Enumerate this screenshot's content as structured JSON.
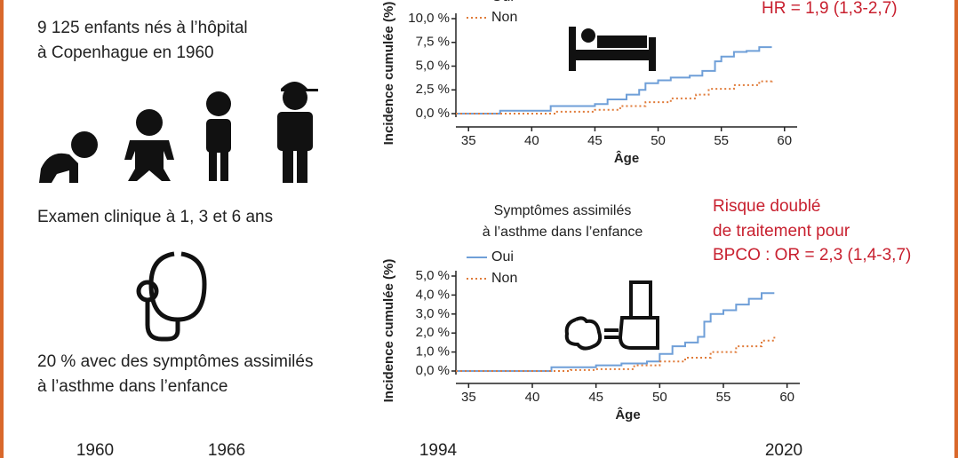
{
  "intro": [
    "9 125 enfants nés à l’hôpital",
    "à Copenhague en 1960"
  ],
  "exam": "Examen clinique à 1, 3 et 6 ans",
  "symptoms": [
    "20 % avec des symptômes assimilés",
    "à l’asthme dans l’enfance"
  ],
  "timeline": [
    "1960",
    "1966",
    "1994",
    "2020"
  ],
  "chart_data": [
    {
      "type": "line",
      "step": true,
      "ylabel": "Incidence cumulée (%)",
      "xlabel": "Âge",
      "annotation": [
        "HR = 1,9 (1,3-2,7)"
      ],
      "xlim": [
        34,
        61
      ],
      "xticks": [
        35,
        40,
        45,
        50,
        55,
        60
      ],
      "ylim": [
        0,
        10
      ],
      "yticks": [
        {
          "value": 0,
          "label": "0,0 %"
        },
        {
          "value": 2.5,
          "label": "2,5 %"
        },
        {
          "value": 5,
          "label": "5,0 %"
        },
        {
          "value": 7.5,
          "label": "7,5 %"
        },
        {
          "value": 10,
          "label": "10,0 %"
        }
      ],
      "series": [
        {
          "name": "Oui",
          "color": "#6f9fd8",
          "line_style": "solid",
          "x": [
            34,
            37.5,
            41.5,
            45,
            46,
            47.5,
            48.5,
            49,
            50,
            51,
            52.5,
            53.5,
            54.5,
            55,
            56,
            57,
            58,
            59
          ],
          "values": [
            0,
            0.3,
            0.8,
            1.0,
            1.5,
            2.0,
            2.5,
            3.2,
            3.5,
            3.8,
            4.0,
            4.5,
            5.5,
            6.0,
            6.5,
            6.6,
            7.0,
            7.0
          ]
        },
        {
          "name": "Non",
          "color": "#e07b39",
          "line_style": "dotted",
          "x": [
            34,
            42,
            45,
            47,
            49,
            51,
            53,
            54,
            56,
            58,
            59
          ],
          "values": [
            0,
            0.2,
            0.4,
            0.8,
            1.2,
            1.6,
            2.0,
            2.6,
            3.0,
            3.4,
            3.6
          ]
        }
      ]
    },
    {
      "type": "line",
      "step": true,
      "title": [
        "Symptômes assimilés",
        "à l’asthme dans l’enfance"
      ],
      "ylabel": "Incidence cumulée (%)",
      "xlabel": "Âge",
      "annotation": [
        "Risque doublé",
        "de traitement pour",
        "BPCO : OR = 2,3 (1,4-3,7)"
      ],
      "xlim": [
        34,
        61
      ],
      "xticks": [
        35,
        40,
        45,
        50,
        55,
        60
      ],
      "ylim": [
        0,
        5
      ],
      "yticks": [
        {
          "value": 0,
          "label": "0,0 %"
        },
        {
          "value": 1,
          "label": "1,0 %"
        },
        {
          "value": 2,
          "label": "2,0 %"
        },
        {
          "value": 3,
          "label": "3,0 %"
        },
        {
          "value": 4,
          "label": "4,0 %"
        },
        {
          "value": 5,
          "label": "5,0 %"
        }
      ],
      "series": [
        {
          "name": "Oui",
          "color": "#6f9fd8",
          "line_style": "solid",
          "x": [
            34,
            41.5,
            45,
            47,
            49,
            50,
            51,
            52,
            53,
            53.5,
            54,
            55,
            56,
            57,
            58,
            59
          ],
          "values": [
            0,
            0.2,
            0.3,
            0.4,
            0.5,
            0.9,
            1.3,
            1.5,
            1.8,
            2.6,
            3.0,
            3.2,
            3.5,
            3.8,
            4.1,
            4.1
          ]
        },
        {
          "name": "Non",
          "color": "#e07b39",
          "line_style": "dotted",
          "x": [
            34,
            43,
            45,
            48,
            50,
            52,
            54,
            56,
            58,
            59
          ],
          "values": [
            0,
            0.05,
            0.1,
            0.3,
            0.5,
            0.7,
            1.0,
            1.3,
            1.6,
            1.8
          ]
        }
      ]
    }
  ]
}
